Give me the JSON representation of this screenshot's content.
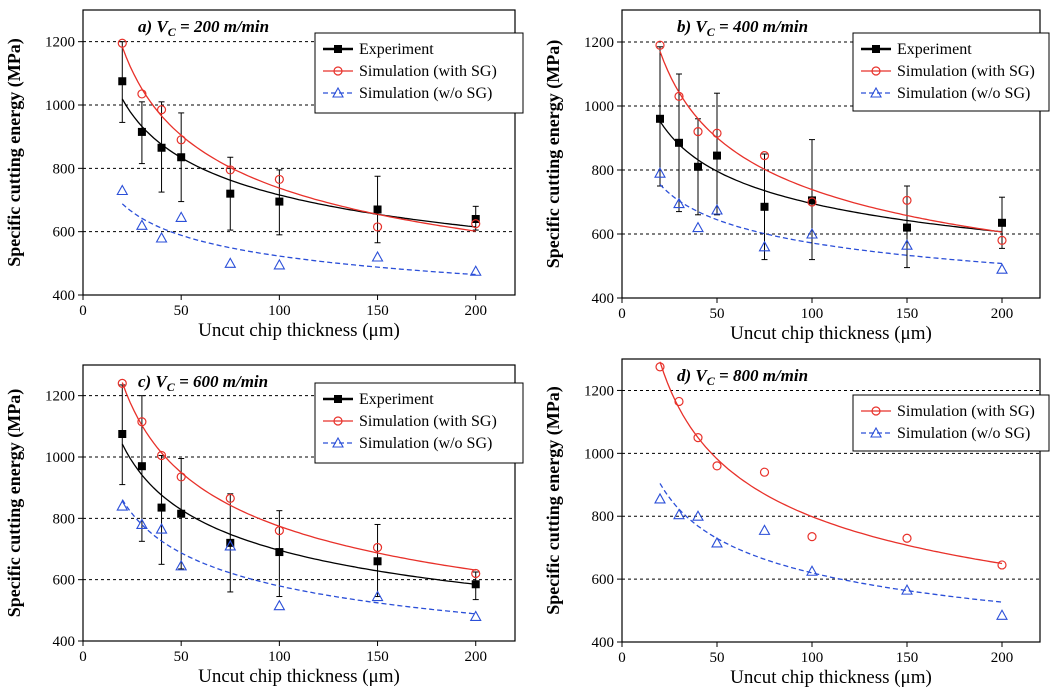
{
  "chart_data": [
    {
      "type": "scatter",
      "title": "a) V",
      "title_sub": "C",
      "title_rest": " = 200 m/min",
      "xlabel": "Uncut chip thickness (μm)",
      "ylabel": "Specific cutting energy (MPa)",
      "xlim": [
        0,
        220
      ],
      "ylim": [
        400,
        1300
      ],
      "xticks": [
        "0",
        "50",
        "100",
        "150",
        "200"
      ],
      "yticks": [
        "400",
        "600",
        "800",
        "1000",
        "1200"
      ],
      "gridlines": [
        600,
        800,
        1000,
        1200
      ],
      "legend_position": "top-right",
      "series": [
        {
          "name": "Experiment",
          "color": "#000000",
          "marker": "square",
          "line": "solid",
          "x": [
            20,
            30,
            40,
            50,
            75,
            100,
            150,
            200
          ],
          "y": [
            1075,
            915,
            865,
            835,
            720,
            695,
            670,
            640
          ],
          "err_low": [
            945,
            815,
            725,
            695,
            605,
            590,
            565,
            605
          ],
          "err_high": [
            1200,
            1010,
            1010,
            975,
            835,
            795,
            775,
            680
          ]
        },
        {
          "name": "Simulation (with SG)",
          "color": "#e8312a",
          "marker": "circle",
          "line": "solid",
          "x": [
            20,
            30,
            40,
            50,
            75,
            100,
            150,
            200
          ],
          "y": [
            1195,
            1035,
            985,
            890,
            795,
            765,
            615,
            625
          ]
        },
        {
          "name": "Simulation (w/o SG)",
          "color": "#2b4fd8",
          "marker": "triangle",
          "line": "dashed",
          "x": [
            20,
            30,
            40,
            50,
            75,
            100,
            150,
            200
          ],
          "y": [
            730,
            620,
            580,
            645,
            500,
            495,
            520,
            475
          ]
        }
      ]
    },
    {
      "type": "scatter",
      "title": "b) V",
      "title_sub": "C",
      "title_rest": " = 400 m/min",
      "xlabel": "Uncut chip thickness (μm)",
      "ylabel": "Specific cutting energy (MPa)",
      "xlim": [
        0,
        220
      ],
      "ylim": [
        400,
        1300
      ],
      "xticks": [
        "0",
        "50",
        "100",
        "150",
        "200"
      ],
      "yticks": [
        "400",
        "600",
        "800",
        "1000",
        "1200"
      ],
      "gridlines": [
        600,
        800,
        1000,
        1200
      ],
      "legend_position": "top-right",
      "series": [
        {
          "name": "Experiment",
          "color": "#000000",
          "marker": "square",
          "line": "solid",
          "x": [
            20,
            30,
            40,
            50,
            75,
            100,
            150,
            200
          ],
          "y": [
            960,
            885,
            810,
            845,
            685,
            705,
            620,
            635
          ],
          "err_low": [
            750,
            670,
            660,
            660,
            520,
            520,
            495,
            555
          ],
          "err_high": [
            1185,
            1100,
            960,
            1040,
            850,
            895,
            750,
            715
          ]
        },
        {
          "name": "Simulation (with SG)",
          "color": "#e8312a",
          "marker": "circle",
          "line": "solid",
          "x": [
            20,
            30,
            40,
            50,
            75,
            100,
            150,
            200
          ],
          "y": [
            1190,
            1030,
            920,
            915,
            845,
            700,
            705,
            580
          ]
        },
        {
          "name": "Simulation (w/o SG)",
          "color": "#2b4fd8",
          "marker": "triangle",
          "line": "dashed",
          "x": [
            20,
            30,
            40,
            50,
            75,
            100,
            150,
            200
          ],
          "y": [
            790,
            695,
            620,
            675,
            560,
            600,
            565,
            490
          ]
        }
      ]
    },
    {
      "type": "scatter",
      "title": "c) V",
      "title_sub": "C",
      "title_rest": " = 600 m/min",
      "xlabel": "Uncut chip thickness (μm)",
      "ylabel": "Specific cutting energy (MPa)",
      "xlim": [
        0,
        220
      ],
      "ylim": [
        400,
        1300
      ],
      "xticks": [
        "0",
        "50",
        "100",
        "150",
        "200"
      ],
      "yticks": [
        "400",
        "600",
        "800",
        "1000",
        "1200"
      ],
      "gridlines": [
        600,
        800,
        1000,
        1200
      ],
      "legend_position": "top-right",
      "series": [
        {
          "name": "Experiment",
          "color": "#000000",
          "marker": "square",
          "line": "solid",
          "x": [
            20,
            30,
            40,
            50,
            75,
            100,
            150,
            200
          ],
          "y": [
            1075,
            970,
            835,
            815,
            720,
            690,
            660,
            585
          ],
          "err_low": [
            910,
            725,
            650,
            635,
            560,
            545,
            545,
            535
          ],
          "err_high": [
            1235,
            1200,
            1005,
            995,
            880,
            825,
            780,
            625
          ]
        },
        {
          "name": "Simulation (with SG)",
          "color": "#e8312a",
          "marker": "circle",
          "line": "solid",
          "x": [
            20,
            30,
            40,
            50,
            75,
            100,
            150,
            200
          ],
          "y": [
            1240,
            1115,
            1005,
            935,
            865,
            760,
            705,
            620
          ]
        },
        {
          "name": "Simulation (w/o SG)",
          "color": "#2b4fd8",
          "marker": "triangle",
          "line": "dashed",
          "x": [
            20,
            30,
            40,
            50,
            75,
            100,
            150,
            200
          ],
          "y": [
            840,
            780,
            765,
            645,
            710,
            515,
            545,
            480
          ]
        }
      ]
    },
    {
      "type": "scatter",
      "title": "d) V",
      "title_sub": "C",
      "title_rest": " = 800 m/min",
      "xlabel": "Uncut chip thickness (μm)",
      "ylabel": "Specific cutting energy (MPa)",
      "xlim": [
        0,
        220
      ],
      "ylim": [
        400,
        1300
      ],
      "xticks": [
        "0",
        "50",
        "100",
        "150",
        "200"
      ],
      "yticks": [
        "400",
        "600",
        "800",
        "1000",
        "1200"
      ],
      "gridlines": [
        600,
        800,
        1000,
        1200
      ],
      "legend_position": "top-right",
      "series": [
        {
          "name": "Simulation (with SG)",
          "color": "#e8312a",
          "marker": "circle",
          "line": "solid",
          "x": [
            20,
            30,
            40,
            50,
            75,
            100,
            150,
            200
          ],
          "y": [
            1275,
            1165,
            1050,
            960,
            940,
            735,
            730,
            645
          ]
        },
        {
          "name": "Simulation (w/o SG)",
          "color": "#2b4fd8",
          "marker": "triangle",
          "line": "dashed",
          "x": [
            20,
            30,
            40,
            50,
            75,
            100,
            150,
            200
          ],
          "y": [
            855,
            805,
            800,
            715,
            755,
            625,
            565,
            485
          ]
        }
      ]
    }
  ]
}
